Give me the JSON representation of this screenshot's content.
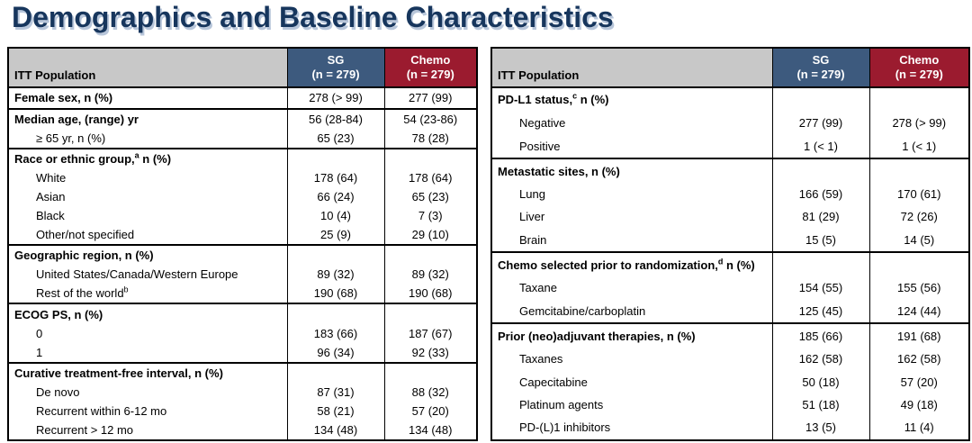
{
  "title": "Demographics and Baseline Characteristics",
  "colors": {
    "title_navy": "#17365D",
    "sg_header_blue": "#3D5A7E",
    "chemo_header_red": "#9B1B2F",
    "population_header_grey": "#C8C8C8"
  },
  "tables": [
    {
      "header": {
        "population": "ITT Population",
        "sg_name": "SG",
        "sg_n": "(n = 279)",
        "chemo_name": "Chemo",
        "chemo_n": "(n = 279)"
      },
      "sections": [
        {
          "rows": [
            {
              "label": "Female sex, n (%)",
              "bold": true,
              "sg": "278 (> 99)",
              "chemo": "277 (99)"
            }
          ]
        },
        {
          "rows": [
            {
              "label": "Median age, (range) yr",
              "bold": true,
              "sg": "56 (28-84)",
              "chemo": "54 (23-86)"
            },
            {
              "label": "≥ 65 yr, n (%)",
              "indent": true,
              "sg": "65 (23)",
              "chemo": "78 (28)"
            }
          ]
        },
        {
          "rows": [
            {
              "label": "Race or ethnic group,",
              "sup": "a",
              "label2": " n (%)",
              "bold": true,
              "sg": "",
              "chemo": ""
            },
            {
              "label": "White",
              "indent": true,
              "sg": "178 (64)",
              "chemo": "178 (64)"
            },
            {
              "label": "Asian",
              "indent": true,
              "sg": "66 (24)",
              "chemo": "65 (23)"
            },
            {
              "label": "Black",
              "indent": true,
              "sg": "10 (4)",
              "chemo": "7 (3)"
            },
            {
              "label": "Other/not specified",
              "indent": true,
              "sg": "25 (9)",
              "chemo": "29 (10)"
            }
          ]
        },
        {
          "rows": [
            {
              "label": "Geographic region, n (%)",
              "bold": true,
              "sg": "",
              "chemo": ""
            },
            {
              "label": "United States/Canada/Western Europe",
              "indent": true,
              "sg": "89 (32)",
              "chemo": "89 (32)"
            },
            {
              "label": "Rest of the world",
              "sup": "b",
              "indent": true,
              "sg": "190 (68)",
              "chemo": "190 (68)"
            }
          ]
        },
        {
          "rows": [
            {
              "label": "ECOG PS, n (%)",
              "bold": true,
              "sg": "",
              "chemo": ""
            },
            {
              "label": "0",
              "indent": true,
              "sg": "183 (66)",
              "chemo": "187 (67)"
            },
            {
              "label": "1",
              "indent": true,
              "sg": "96 (34)",
              "chemo": "92 (33)"
            }
          ]
        },
        {
          "rows": [
            {
              "label": "Curative treatment-free interval, n (%)",
              "bold": true,
              "sg": "",
              "chemo": ""
            },
            {
              "label": "De novo",
              "indent": true,
              "sg": "87 (31)",
              "chemo": "88 (32)"
            },
            {
              "label": "Recurrent within 6-12 mo",
              "indent": true,
              "sg": "58 (21)",
              "chemo": "57 (20)"
            },
            {
              "label": "Recurrent > 12 mo",
              "indent": true,
              "sg": "134 (48)",
              "chemo": "134 (48)"
            }
          ]
        }
      ]
    },
    {
      "header": {
        "population": "ITT Population",
        "sg_name": "SG",
        "sg_n": "(n = 279)",
        "chemo_name": "Chemo",
        "chemo_n": "(n = 279)"
      },
      "sections": [
        {
          "rows": [
            {
              "label": "PD-L1 status,",
              "sup": "c",
              "label2": " n (%)",
              "bold": true,
              "sg": "",
              "chemo": ""
            },
            {
              "label": "Negative",
              "indent": true,
              "sg": "277 (99)",
              "chemo": "278 (> 99)"
            },
            {
              "label": "Positive",
              "indent": true,
              "sg": "1 (< 1)",
              "chemo": "1 (< 1)"
            }
          ]
        },
        {
          "rows": [
            {
              "label": "Metastatic sites, n (%)",
              "bold": true,
              "sg": "",
              "chemo": ""
            },
            {
              "label": "Lung",
              "indent": true,
              "sg": "166 (59)",
              "chemo": "170 (61)"
            },
            {
              "label": "Liver",
              "indent": true,
              "sg": "81 (29)",
              "chemo": "72 (26)"
            },
            {
              "label": "Brain",
              "indent": true,
              "sg": "15 (5)",
              "chemo": "14 (5)"
            }
          ]
        },
        {
          "rows": [
            {
              "label": "Chemo selected prior to randomization,",
              "sup": "d",
              "label2": " n (%)",
              "bold": true,
              "sg": "",
              "chemo": ""
            },
            {
              "label": "Taxane",
              "indent": true,
              "sg": "154 (55)",
              "chemo": "155 (56)"
            },
            {
              "label": "Gemcitabine/carboplatin",
              "indent": true,
              "sg": "125 (45)",
              "chemo": "124 (44)"
            }
          ]
        },
        {
          "rows": [
            {
              "label": "Prior (neo)adjuvant therapies, n (%)",
              "bold": true,
              "sg": "185 (66)",
              "chemo": "191 (68)"
            },
            {
              "label": "Taxanes",
              "indent": true,
              "sg": "162 (58)",
              "chemo": "162 (58)"
            },
            {
              "label": "Capecitabine",
              "indent": true,
              "sg": "50 (18)",
              "chemo": "57 (20)"
            },
            {
              "label": "Platinum agents",
              "indent": true,
              "sg": "51 (18)",
              "chemo": "49 (18)"
            },
            {
              "label": "PD-(L)1 inhibitors",
              "indent": true,
              "sg": "13 (5)",
              "chemo": "11 (4)"
            }
          ]
        }
      ]
    }
  ]
}
